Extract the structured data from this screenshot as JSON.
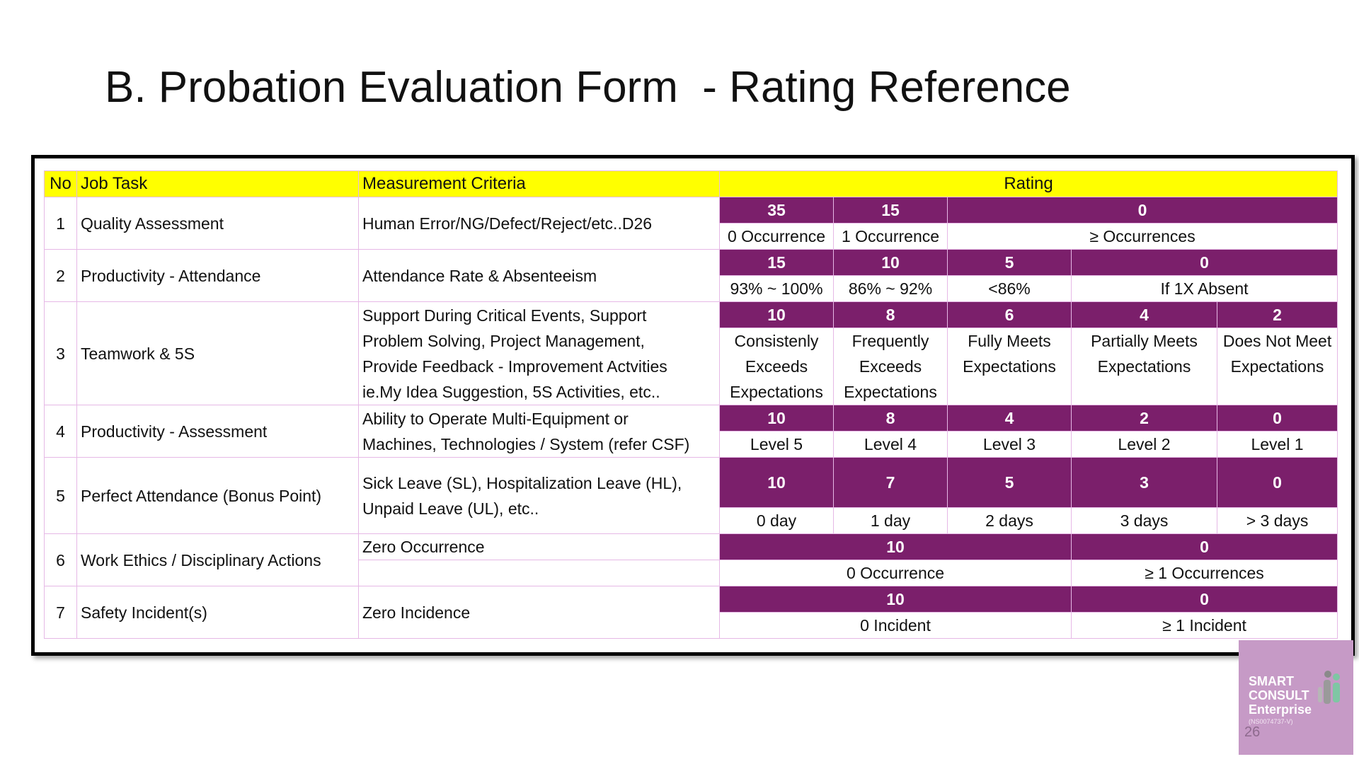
{
  "slide": {
    "title": "B. Probation Evaluation Form  - Rating Reference",
    "page_number": "26"
  },
  "table": {
    "headers": {
      "no": "No",
      "job_task": "Job Task",
      "criteria": "Measurement Criteria",
      "rating": "Rating"
    },
    "rows": [
      {
        "no": "1",
        "task": "Quality Assessment",
        "criteria": "Human Error/NG/Defect/Reject/etc..D26",
        "scores": [
          "35",
          "15",
          "0"
        ],
        "labels": [
          "0 Occurrence",
          "1 Occurrence",
          "≥ Occurrences"
        ]
      },
      {
        "no": "2",
        "task": "Productivity - Attendance",
        "criteria": "Attendance Rate & Absenteeism",
        "scores": [
          "15",
          "10",
          "5",
          "0"
        ],
        "labels": [
          "93% ~ 100%",
          "86% ~ 92%",
          "<86%",
          "If 1X Absent"
        ]
      },
      {
        "no": "3",
        "task": "Teamwork & 5S",
        "criteria": [
          "Support During Critical Events, Support",
          "Problem Solving, Project Management,",
          "Provide Feedback - Improvement Actvities",
          "ie.My Idea Suggestion, 5S Activities, etc.."
        ],
        "scores": [
          "10",
          "8",
          "6",
          "4",
          "2"
        ],
        "labels": [
          [
            "Consistenly",
            "Exceeds",
            "Expectations"
          ],
          [
            "Frequently",
            "Exceeds",
            "Expectations"
          ],
          [
            "Fully Meets",
            "Expectations"
          ],
          [
            "Partially Meets",
            "Expectations"
          ],
          [
            "Does Not Meet",
            "Expectations"
          ]
        ]
      },
      {
        "no": "4",
        "task": "Productivity - Assessment",
        "criteria": [
          "Ability to Operate Multi-Equipment or",
          "Machines, Technologies / System (refer CSF)"
        ],
        "scores": [
          "10",
          "8",
          "4",
          "2",
          "0"
        ],
        "labels": [
          "Level 5",
          "Level 4",
          "Level 3",
          "Level 2",
          "Level 1"
        ]
      },
      {
        "no": "5",
        "task": "Perfect Attendance (Bonus Point)",
        "criteria": [
          "Sick Leave (SL), Hospitalization Leave (HL),",
          "Unpaid Leave (UL), etc.."
        ],
        "scores": [
          "10",
          "7",
          "5",
          "3",
          "0"
        ],
        "labels": [
          "0 day",
          "1 day",
          "2 days",
          "3 days",
          "> 3 days"
        ]
      },
      {
        "no": "6",
        "task": "Work Ethics / Disciplinary Actions",
        "criteria": "Zero Occurrence",
        "scores": [
          "10",
          "0"
        ],
        "labels": [
          "0 Occurrence",
          "≥ 1 Occurrences"
        ]
      },
      {
        "no": "7",
        "task": "Safety Incident(s)",
        "criteria": "Zero Incidence",
        "scores": [
          "10",
          "0"
        ],
        "labels": [
          "0 Incident",
          "≥ 1 Incident"
        ]
      }
    ]
  },
  "logo": {
    "line1": "SMART",
    "line2": "CONSULT",
    "line3": "Enterprise",
    "reg": "(NS0074737-V)"
  },
  "colors": {
    "header_bg": "#ffff00",
    "score_bg": "#7b1f6b",
    "grid": "#e6b8e6",
    "logo_bg": "#c69ac6"
  }
}
